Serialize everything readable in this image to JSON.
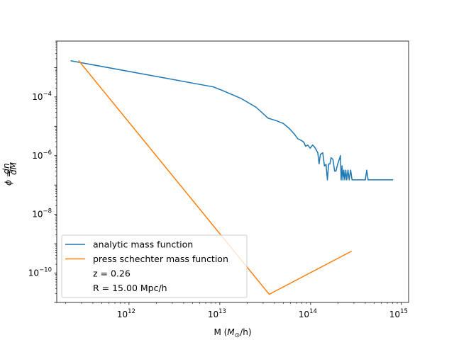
{
  "chart_data": {
    "type": "line",
    "xscale": "log",
    "yscale": "log",
    "xlim": [
      160000000000.0,
      1200000000000000.0
    ],
    "ylim": [
      1e-11,
      0.008
    ],
    "xticks": [
      {
        "value": 1000000000000.0,
        "base": "10",
        "exp": "12"
      },
      {
        "value": 10000000000000.0,
        "base": "10",
        "exp": "13"
      },
      {
        "value": 100000000000000.0,
        "base": "10",
        "exp": "14"
      },
      {
        "value": 1000000000000000.0,
        "base": "10",
        "exp": "15"
      }
    ],
    "yticks": [
      {
        "value": 1e-10,
        "base": "10",
        "exp": "−10"
      },
      {
        "value": 1e-08,
        "base": "10",
        "exp": "−8"
      },
      {
        "value": 1e-06,
        "base": "10",
        "exp": "−6"
      },
      {
        "value": 0.0001,
        "base": "10",
        "exp": "−4"
      }
    ],
    "xlabel": {
      "prefix": "M (",
      "math": "M",
      "sub": "⊙",
      "suffix": "/h)"
    },
    "ylabel": {
      "phi": "ϕ",
      "eq": " = ",
      "num": "dn",
      "den": "dM"
    },
    "grid": false,
    "legend": {
      "placement": "lower-left",
      "entries": [
        {
          "label": "analytic mass function",
          "color": "#1f77b4",
          "line": true
        },
        {
          "label": "press schechter mass function",
          "color": "#ff7f0e",
          "line": true
        },
        {
          "label": "z = 0.26",
          "line": false
        },
        {
          "label": "R = 15.00 Mpc/h",
          "line": false
        }
      ]
    },
    "series": [
      {
        "name": "analytic mass function",
        "color": "#1f77b4",
        "points": [
          [
            230000000000.0,
            0.0017
          ],
          [
            8500000000000.0,
            0.00022
          ],
          [
            10500000000000.0,
            0.00017
          ],
          [
            17000000000000.0,
            9e-05
          ],
          [
            25000000000000.0,
            4.5e-05
          ],
          [
            34000000000000.0,
            1.9e-05
          ],
          [
            42000000000000.0,
            1.55e-05
          ],
          [
            50000000000000.0,
            1.25e-05
          ],
          [
            58000000000000.0,
            8.5e-06
          ],
          [
            66000000000000.0,
            5.5e-06
          ],
          [
            72000000000000.0,
            3.8e-06
          ],
          [
            79000000000000.0,
            3.3e-06
          ],
          [
            84000000000000.0,
            2.9e-06
          ],
          [
            88000000000000.0,
            2.1e-06
          ],
          [
            93000000000000.0,
            2.3e-06
          ],
          [
            99000000000000.0,
            1.8e-06
          ],
          [
            105000000000000.0,
            2.3e-06
          ],
          [
            110000000000000.0,
            2e-06
          ],
          [
            115000000000000.0,
            1.6e-06
          ],
          [
            120000000000000.0,
            1.25e-06
          ],
          [
            124000000000000.0,
            5.3e-07
          ],
          [
            128000000000000.0,
            1.1e-06
          ],
          [
            136000000000000.0,
            1.25e-06
          ],
          [
            142000000000000.0,
            4.5e-07
          ],
          [
            148000000000000.0,
            5e-07
          ],
          [
            153000000000000.0,
            1.5e-07
          ],
          [
            158000000000000.0,
            5.2e-07
          ],
          [
            163000000000000.0,
            5.2e-07
          ],
          [
            168000000000000.0,
            8.5e-07
          ],
          [
            176000000000000.0,
            7.5e-07
          ],
          [
            184000000000000.0,
            3e-07
          ],
          [
            190000000000000.0,
            3e-07
          ],
          [
            198000000000000.0,
            5e-07
          ],
          [
            207000000000000.0,
            7.5e-07
          ],
          [
            213000000000000.0,
            1e-06
          ],
          [
            217000000000000.0,
            1.5e-07
          ],
          [
            222000000000000.0,
            4.5e-07
          ],
          [
            227000000000000.0,
            1.5e-07
          ],
          [
            232000000000000.0,
            3.2e-07
          ],
          [
            238000000000000.0,
            1.5e-07
          ],
          [
            244000000000000.0,
            3.2e-07
          ],
          [
            250000000000000.0,
            1.5e-07
          ],
          [
            258000000000000.0,
            3.2e-07
          ],
          [
            266000000000000.0,
            1.5e-07
          ],
          [
            276000000000000.0,
            3.2e-07
          ],
          [
            286000000000000.0,
            1.5e-07
          ],
          [
            400000000000000.0,
            1.5e-07
          ],
          [
            415000000000000.0,
            3.2e-07
          ],
          [
            430000000000000.0,
            1.5e-07
          ],
          [
            800000000000000.0,
            1.5e-07
          ]
        ]
      },
      {
        "name": "press schechter mass function",
        "color": "#ff7f0e",
        "points": [
          [
            280000000000.0,
            0.0017
          ],
          [
            35000000000000.0,
            1.9e-11
          ],
          [
            280000000000000.0,
            5.5e-10
          ]
        ]
      }
    ]
  }
}
